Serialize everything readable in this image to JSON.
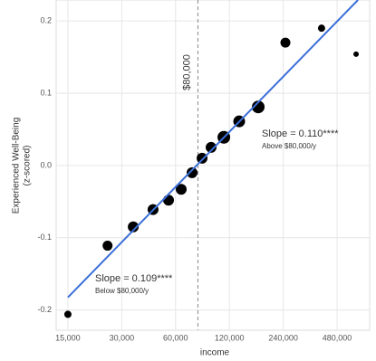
{
  "chart_data": {
    "type": "scatter",
    "x_label": "income",
    "y_label": [
      "Experienced Well-Being",
      "(z-scored)"
    ],
    "x_scale": "log",
    "grid": true,
    "color": "#000000",
    "x": [
      15000,
      25000,
      34800,
      44900,
      54800,
      64500,
      74200,
      84400,
      94800,
      111700,
      136100,
      173900,
      246800,
      393000,
      613000
    ],
    "values": [
      -0.206,
      -0.111,
      -0.085,
      -0.061,
      -0.048,
      -0.033,
      -0.01,
      0.01,
      0.025,
      0.039,
      0.061,
      0.081,
      0.17,
      0.19,
      0.154
    ],
    "sizes": [
      4,
      5.5,
      6,
      6,
      6,
      6,
      6,
      6,
      6,
      7,
      6.5,
      7,
      5.5,
      4,
      3
    ],
    "fit": {
      "color": "#3b6fd8",
      "x": [
        15000,
        628000
      ],
      "values": [
        -0.1825,
        0.229
      ]
    },
    "vline": {
      "value": 80000,
      "label": "$80,000"
    },
    "annotations": [
      {
        "title": "Slope = 0.109****",
        "subtitle": "Below $80,000/y"
      },
      {
        "title": "Slope = 0.110****",
        "subtitle": "Above $80,000/y"
      }
    ],
    "xlim": [
      12900,
      730000
    ],
    "ylim": [
      -0.228,
      0.229
    ],
    "xticks": [
      {
        "value": 15000,
        "label": "15,000"
      },
      {
        "value": 30000,
        "label": "30,000"
      },
      {
        "value": 60000,
        "label": "60,000"
      },
      {
        "value": 120000,
        "label": "120,000"
      },
      {
        "value": 240000,
        "label": "240,000"
      },
      {
        "value": 480000,
        "label": "480,000"
      }
    ],
    "yticks": [
      -0.2,
      -0.1,
      {
        "value": 0,
        "label": "0.0"
      },
      0.1,
      0.2
    ]
  }
}
